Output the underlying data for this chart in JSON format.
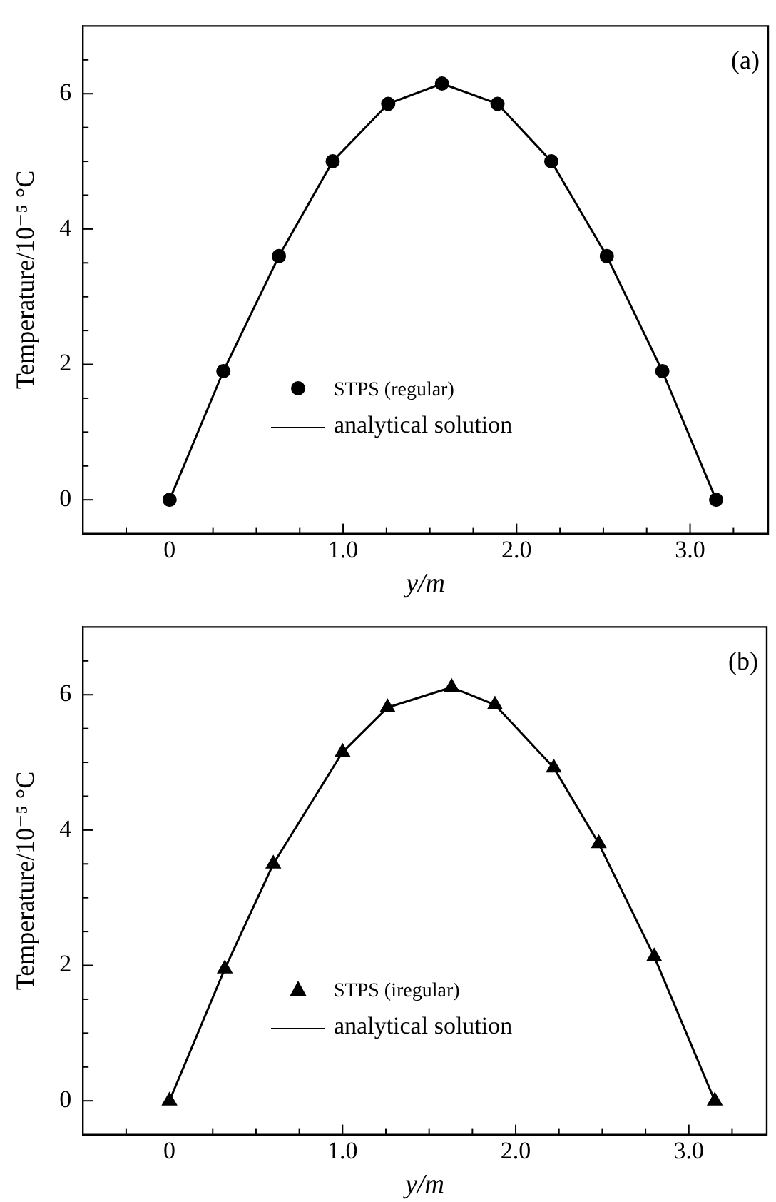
{
  "chart_data": [
    {
      "type": "scatter",
      "annotations": [
        "(a)"
      ],
      "xlabel": "y/m",
      "ylabel": "Temperature/10⁻⁵ °C",
      "legend": "bottom",
      "x": [
        0,
        0.31,
        0.63,
        0.94,
        1.26,
        1.57,
        1.89,
        2.2,
        2.52,
        2.84,
        3.15
      ],
      "series": [
        {
          "name": "STPS (regular)",
          "type": "scatter",
          "marker": "circle",
          "color": "#000000",
          "values": [
            0,
            1.9,
            3.6,
            5.0,
            5.85,
            6.15,
            5.85,
            5.0,
            3.6,
            1.9,
            0
          ]
        },
        {
          "name": "analytical solution",
          "type": "line",
          "line_style": "solid",
          "color": "#000000",
          "values": [
            0,
            1.9,
            3.6,
            5.0,
            5.85,
            6.15,
            5.85,
            5.0,
            3.6,
            1.9,
            0
          ]
        }
      ],
      "xlim": [
        -0.5,
        3.45
      ],
      "ylim": [
        -0.5,
        7
      ],
      "xticks": [
        {
          "value": -0.25,
          "label": null
        },
        0,
        {
          "value": 0.25,
          "label": null
        },
        {
          "value": 0.5,
          "label": null
        },
        {
          "value": 0.75,
          "label": null
        },
        {
          "value": 1,
          "label": "1.0"
        },
        {
          "value": 1.25,
          "label": null
        },
        {
          "value": 1.5,
          "label": null
        },
        {
          "value": 1.75,
          "label": null
        },
        {
          "value": 2,
          "label": "2.0"
        },
        {
          "value": 2.25,
          "label": null
        },
        {
          "value": 2.5,
          "label": null
        },
        {
          "value": 2.75,
          "label": null
        },
        {
          "value": 3,
          "label": "3.0"
        },
        {
          "value": 3.25,
          "label": null
        }
      ],
      "yticks": [
        0,
        {
          "value": 0.5,
          "label": null
        },
        {
          "value": 1,
          "label": null
        },
        {
          "value": 1.5,
          "label": null
        },
        2,
        {
          "value": 2.5,
          "label": null
        },
        {
          "value": 3,
          "label": null
        },
        {
          "value": 3.5,
          "label": null
        },
        4,
        {
          "value": 4.5,
          "label": null
        },
        {
          "value": 5,
          "label": null
        },
        {
          "value": 5.5,
          "label": null
        },
        6,
        {
          "value": 6.5,
          "label": null
        }
      ]
    },
    {
      "type": "scatter",
      "annotations": [
        "(b)"
      ],
      "xlabel": "y/m",
      "ylabel": "Temperature/10⁻⁵ °C",
      "legend": "bottom",
      "x": [
        0,
        0.32,
        0.6,
        1.0,
        1.26,
        1.63,
        1.88,
        2.22,
        2.48,
        2.8,
        3.15
      ],
      "series": [
        {
          "name": "STPS (iregular)",
          "type": "scatter",
          "marker": "triangle",
          "color": "#000000",
          "values": [
            0,
            1.95,
            3.5,
            5.15,
            5.81,
            6.11,
            5.85,
            4.92,
            3.8,
            2.13,
            0
          ]
        },
        {
          "name": "analytical solution",
          "type": "line",
          "line_style": "solid",
          "color": "#000000",
          "values": [
            0,
            1.95,
            3.5,
            5.15,
            5.81,
            6.11,
            5.85,
            4.92,
            3.8,
            2.13,
            0
          ]
        }
      ],
      "xlim": [
        -0.5,
        3.45
      ],
      "ylim": [
        -0.5,
        7
      ],
      "xticks": [
        {
          "value": -0.25,
          "label": null
        },
        0,
        {
          "value": 0.25,
          "label": null
        },
        {
          "value": 0.5,
          "label": null
        },
        {
          "value": 0.75,
          "label": null
        },
        {
          "value": 1,
          "label": "1.0"
        },
        {
          "value": 1.25,
          "label": null
        },
        {
          "value": 1.5,
          "label": null
        },
        {
          "value": 1.75,
          "label": null
        },
        {
          "value": 2,
          "label": "2.0"
        },
        {
          "value": 2.25,
          "label": null
        },
        {
          "value": 2.5,
          "label": null
        },
        {
          "value": 2.75,
          "label": null
        },
        {
          "value": 3,
          "label": "3.0"
        },
        {
          "value": 3.25,
          "label": null
        }
      ],
      "yticks": [
        0,
        {
          "value": 0.5,
          "label": null
        },
        {
          "value": 1,
          "label": null
        },
        {
          "value": 1.5,
          "label": null
        },
        2,
        {
          "value": 2.5,
          "label": null
        },
        {
          "value": 3,
          "label": null
        },
        {
          "value": 3.5,
          "label": null
        },
        4,
        {
          "value": 4.5,
          "label": null
        },
        {
          "value": 5,
          "label": null
        },
        {
          "value": 5.5,
          "label": null
        },
        6,
        {
          "value": 6.5,
          "label": null
        }
      ]
    }
  ]
}
